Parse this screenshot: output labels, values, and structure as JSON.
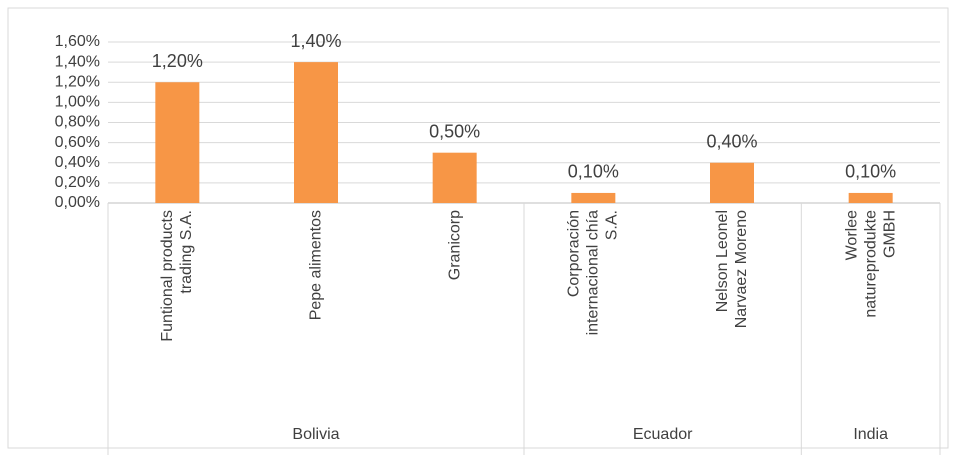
{
  "chart_data": {
    "type": "bar",
    "categories": [
      "Funtional products trading S.A.",
      "Pepe alimentos",
      "Granicorp",
      "Corporación internacional chía S.A.",
      "Nelson Leonel Narvaez Moreno",
      "Worlee natureprodukte GMBH"
    ],
    "groups": [
      {
        "name": "Bolivia",
        "size": 3
      },
      {
        "name": "Ecuador",
        "size": 2
      },
      {
        "name": "India",
        "size": 1
      }
    ],
    "values": [
      1.2,
      1.4,
      0.5,
      0.1,
      0.4,
      0.1
    ],
    "value_labels": [
      "1,20%",
      "1,40%",
      "0,50%",
      "0,10%",
      "0,40%",
      "0,10%"
    ],
    "color": "#f79646",
    "ylim": [
      0,
      1.6
    ],
    "yticks": [
      {
        "value": 0,
        "label": "0,00%"
      },
      {
        "value": 0.2,
        "label": "0,20%"
      },
      {
        "value": 0.4,
        "label": "0,40%"
      },
      {
        "value": 0.6,
        "label": "0,60%"
      },
      {
        "value": 0.8,
        "label": "0,80%"
      },
      {
        "value": 1.0,
        "label": "1,00%"
      },
      {
        "value": 1.2,
        "label": "1,20%"
      },
      {
        "value": 1.4,
        "label": "1,40%"
      },
      {
        "value": 1.6,
        "label": "1,60%"
      }
    ],
    "grid": true
  }
}
